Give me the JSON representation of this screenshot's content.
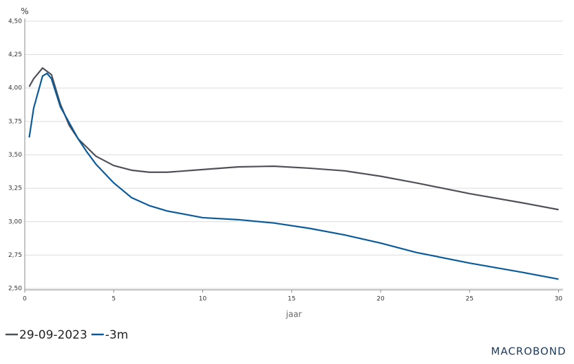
{
  "chart_data": {
    "type": "line",
    "y_unit_label": "%",
    "xlabel": "jaar",
    "brand": "MACROBOND",
    "xlim": [
      0,
      30.25
    ],
    "ylim": [
      2.49,
      4.52
    ],
    "xticks": [
      0,
      5,
      10,
      15,
      20,
      25,
      30
    ],
    "yticks": [
      {
        "value": 2.5,
        "label": "2,50"
      },
      {
        "value": 2.75,
        "label": "2,75"
      },
      {
        "value": 3.0,
        "label": "3,00"
      },
      {
        "value": 3.25,
        "label": "3,25"
      },
      {
        "value": 3.5,
        "label": "3,50"
      },
      {
        "value": 3.75,
        "label": "3,75"
      },
      {
        "value": 4.0,
        "label": "4,00"
      },
      {
        "value": 4.25,
        "label": "4,25"
      },
      {
        "value": 4.5,
        "label": "4,50"
      }
    ],
    "grid": true,
    "legend": "bottom-left",
    "series": [
      {
        "name": "29-09-2023",
        "color": "#4d5157",
        "x": [
          0.25,
          0.5,
          1,
          1.5,
          2,
          2.5,
          3,
          4,
          5,
          6,
          7,
          8,
          10,
          12,
          14,
          16,
          18,
          20,
          22,
          25,
          28,
          30
        ],
        "values": [
          4.01,
          4.07,
          4.15,
          4.1,
          3.88,
          3.72,
          3.62,
          3.49,
          3.42,
          3.385,
          3.37,
          3.37,
          3.39,
          3.41,
          3.415,
          3.4,
          3.38,
          3.34,
          3.29,
          3.21,
          3.14,
          3.09
        ]
      },
      {
        "name": "-3m",
        "color": "#0a5a9a",
        "x": [
          0.25,
          0.5,
          1,
          1.25,
          1.5,
          2,
          3,
          3.5,
          4,
          5,
          6,
          7,
          8,
          10,
          12,
          14,
          16,
          18,
          20,
          22,
          25,
          28,
          30
        ],
        "values": [
          3.63,
          3.85,
          4.09,
          4.11,
          4.07,
          3.86,
          3.62,
          3.52,
          3.43,
          3.29,
          3.18,
          3.12,
          3.08,
          3.03,
          3.015,
          2.99,
          2.95,
          2.9,
          2.84,
          2.77,
          2.69,
          2.62,
          2.57
        ]
      }
    ]
  }
}
